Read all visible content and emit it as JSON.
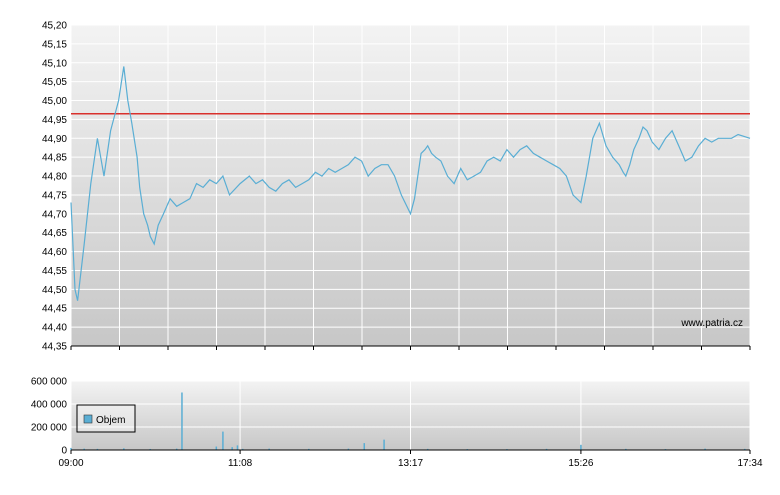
{
  "watermark": "www.patria.cz",
  "colors": {
    "price_line": "#5aaed4",
    "reference_line": "#d9302c",
    "volume_bar": "#5aaed4",
    "plot_top": "#f3f3f3",
    "plot_bottom": "#c7c7c7"
  },
  "chart_data": [
    {
      "type": "line",
      "title": "",
      "xlabel": "",
      "ylabel": "",
      "ylim": [
        44.35,
        45.2
      ],
      "yticks": [
        "45,20",
        "45,15",
        "45,10",
        "45,05",
        "45,00",
        "44,95",
        "44,90",
        "44,85",
        "44,80",
        "44,75",
        "44,70",
        "44,65",
        "44,60",
        "44,55",
        "44,50",
        "44,45",
        "44,40",
        "44,35"
      ],
      "xlim": [
        "09:00",
        "17:34"
      ],
      "grid": true,
      "reference_line": 44.965,
      "series": [
        {
          "x": [
            "09:00",
            "09:03",
            "09:05",
            "09:10",
            "09:15",
            "09:20",
            "09:25",
            "09:30",
            "09:33",
            "09:36",
            "09:40",
            "09:43",
            "09:46",
            "09:50",
            "09:52",
            "09:55",
            "09:58",
            "10:00",
            "10:03",
            "10:06",
            "10:10",
            "10:15",
            "10:20",
            "10:25",
            "10:30",
            "10:35",
            "10:40",
            "10:45",
            "10:50",
            "10:55",
            "11:00",
            "11:08",
            "11:15",
            "11:20",
            "11:25",
            "11:30",
            "11:35",
            "11:40",
            "11:45",
            "11:50",
            "11:55",
            "12:00",
            "12:05",
            "12:10",
            "12:15",
            "12:20",
            "12:25",
            "12:30",
            "12:35",
            "12:40",
            "12:45",
            "12:50",
            "12:55",
            "13:00",
            "13:05",
            "13:10",
            "13:17",
            "13:20",
            "13:25",
            "13:28",
            "13:30",
            "13:33",
            "13:36",
            "13:40",
            "13:45",
            "13:50",
            "13:55",
            "14:00",
            "14:05",
            "14:10",
            "14:15",
            "14:20",
            "14:25",
            "14:30",
            "14:35",
            "14:40",
            "14:45",
            "14:50",
            "14:55",
            "15:00",
            "15:05",
            "15:10",
            "15:15",
            "15:20",
            "15:26",
            "15:30",
            "15:35",
            "15:40",
            "15:45",
            "15:50",
            "15:55",
            "15:58",
            "16:00",
            "16:03",
            "16:06",
            "16:10",
            "16:13",
            "16:16",
            "16:20",
            "16:25",
            "16:30",
            "16:35",
            "16:40",
            "16:45",
            "16:50",
            "16:55",
            "17:00",
            "17:05",
            "17:10",
            "17:15",
            "17:20",
            "17:25",
            "17:34"
          ],
          "values": [
            44.73,
            44.5,
            44.47,
            44.62,
            44.78,
            44.9,
            44.8,
            44.92,
            44.96,
            45.0,
            45.09,
            45.0,
            44.94,
            44.85,
            44.77,
            44.7,
            44.67,
            44.64,
            44.62,
            44.67,
            44.7,
            44.74,
            44.72,
            44.73,
            44.74,
            44.78,
            44.77,
            44.79,
            44.78,
            44.8,
            44.75,
            44.78,
            44.8,
            44.78,
            44.79,
            44.77,
            44.76,
            44.78,
            44.79,
            44.77,
            44.78,
            44.79,
            44.81,
            44.8,
            44.82,
            44.81,
            44.82,
            44.83,
            44.85,
            44.84,
            44.8,
            44.82,
            44.83,
            44.83,
            44.8,
            44.75,
            44.7,
            44.74,
            44.86,
            44.87,
            44.88,
            44.86,
            44.85,
            44.84,
            44.8,
            44.78,
            44.82,
            44.79,
            44.8,
            44.81,
            44.84,
            44.85,
            44.84,
            44.87,
            44.85,
            44.87,
            44.88,
            44.86,
            44.85,
            44.84,
            44.83,
            44.82,
            44.8,
            44.75,
            44.73,
            44.8,
            44.9,
            44.94,
            44.88,
            44.85,
            44.83,
            44.81,
            44.8,
            44.83,
            44.87,
            44.9,
            44.93,
            44.92,
            44.89,
            44.87,
            44.9,
            44.92,
            44.88,
            44.84,
            44.85,
            44.88,
            44.9,
            44.89,
            44.9,
            44.9,
            44.9,
            44.91,
            44.9
          ]
        }
      ]
    },
    {
      "type": "bar",
      "title": "",
      "ylim": [
        0,
        600000
      ],
      "yticks": [
        "600 000",
        "400 000",
        "200 000",
        "0"
      ],
      "xticks": [
        "09:00",
        "11:08",
        "13:17",
        "15:26",
        "17:34"
      ],
      "legend": "Objem",
      "legend_position": "left",
      "grid": true,
      "series": [
        {
          "name": "Objem",
          "x": [
            "09:00",
            "09:10",
            "09:20",
            "09:40",
            "10:00",
            "10:20",
            "10:24",
            "10:50",
            "10:55",
            "11:02",
            "11:06",
            "11:10",
            "11:30",
            "12:00",
            "12:30",
            "12:42",
            "12:57",
            "13:30",
            "14:00",
            "14:30",
            "15:00",
            "15:26",
            "16:00",
            "16:30",
            "17:00",
            "17:30"
          ],
          "values": [
            18000,
            12000,
            10000,
            15000,
            9000,
            12000,
            500000,
            30000,
            160000,
            25000,
            40000,
            10000,
            12000,
            10000,
            12000,
            60000,
            90000,
            10000,
            8000,
            8000,
            10000,
            45000,
            10000,
            8000,
            12000,
            10000
          ]
        }
      ]
    }
  ]
}
